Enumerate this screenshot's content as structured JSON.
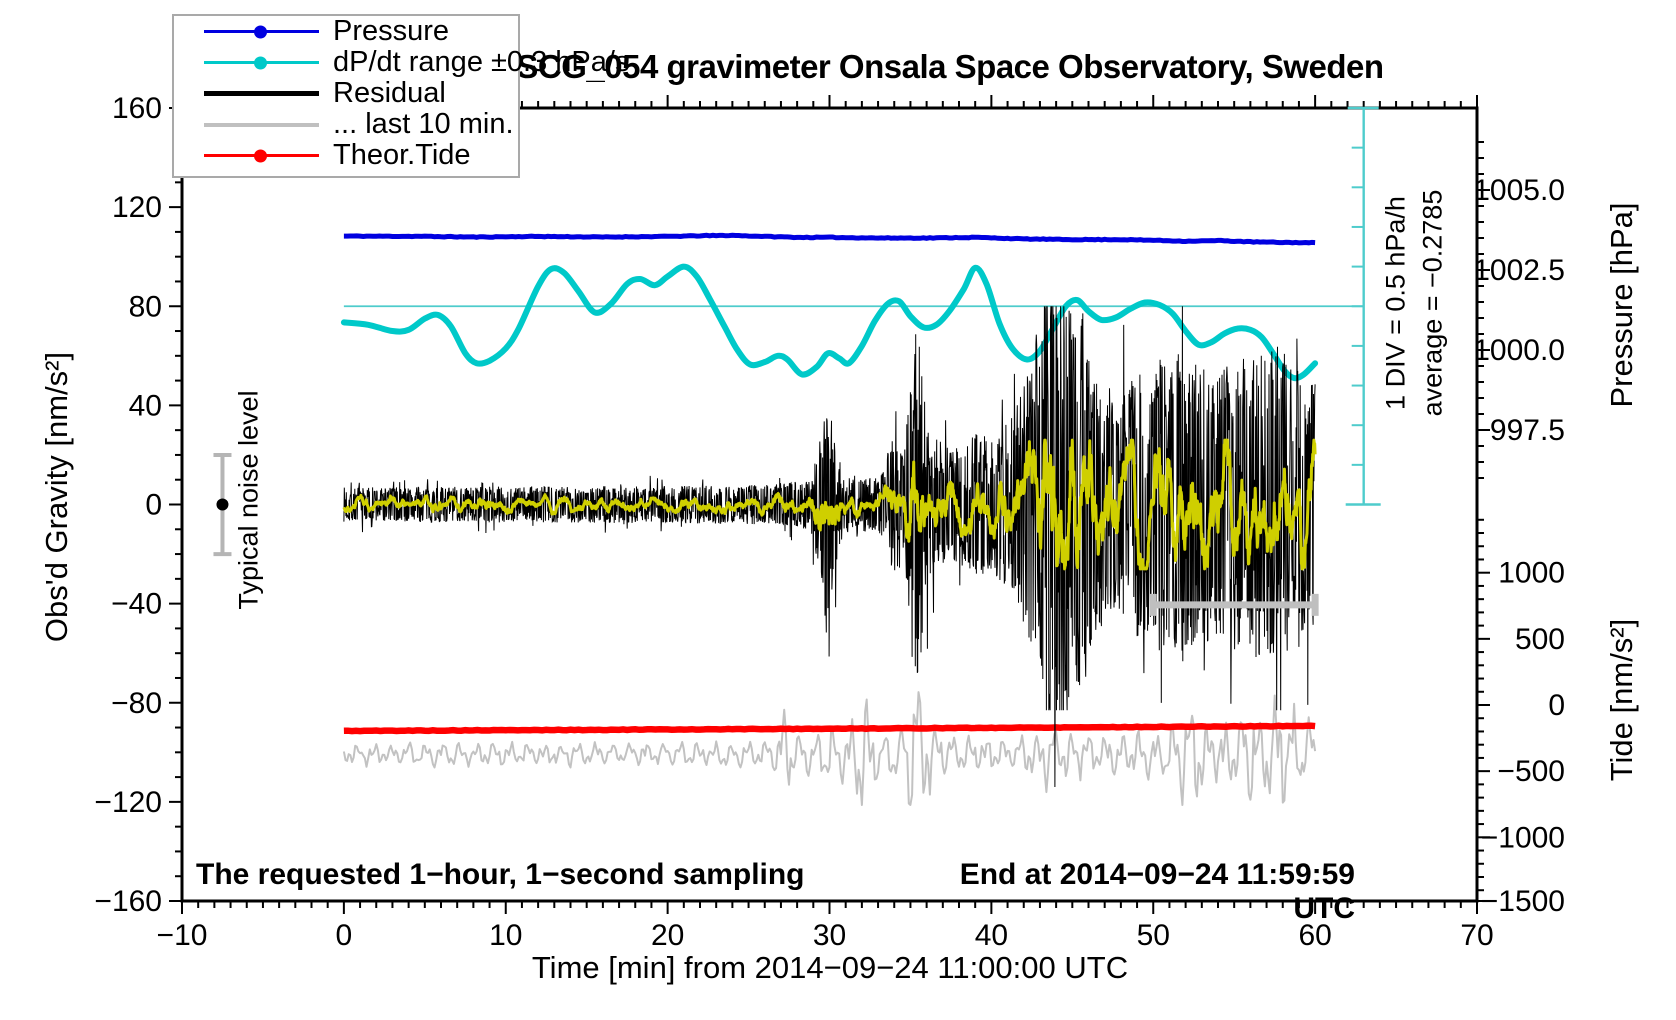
{
  "figure": {
    "title": "SCG_054 gravimeter Onsala Space Observatory, Sweden",
    "background": "#ffffff"
  },
  "legend": {
    "items": [
      {
        "label": "Pressure",
        "color": "#0000e0",
        "dot": true,
        "weight": 3
      },
      {
        "label": "dP/dt range ±0.3 hPa/s",
        "color": "#00c9c9",
        "dot": true,
        "weight": 3
      },
      {
        "label": "Residual",
        "color": "#000000",
        "dot": false,
        "weight": 5
      },
      {
        "label": "... last 10 min.",
        "color": "#c0c0c0",
        "dot": false,
        "weight": 4
      },
      {
        "label": "Theor.Tide",
        "color": "#ff0000",
        "dot": true,
        "weight": 3
      }
    ]
  },
  "axes": {
    "x": {
      "title": "Time [min] from 2014−09−24 11:00:00 UTC",
      "min": -10,
      "max": 70,
      "minor_step": 1,
      "ticks": [
        {
          "v": -10,
          "label": "−10"
        },
        {
          "v": 0,
          "label": "0"
        },
        {
          "v": 10,
          "label": "10"
        },
        {
          "v": 20,
          "label": "20"
        },
        {
          "v": 30,
          "label": "30"
        },
        {
          "v": 40,
          "label": "40"
        },
        {
          "v": 50,
          "label": "50"
        },
        {
          "v": 60,
          "label": "60"
        },
        {
          "v": 70,
          "label": "70"
        }
      ]
    },
    "gravity": {
      "title": "Obs'd Gravity [nm/s²]",
      "min": -160,
      "max": 160,
      "minor_step": 10,
      "ticks": [
        {
          "v": 160,
          "label": "160"
        },
        {
          "v": 120,
          "label": "120"
        },
        {
          "v": 80,
          "label": "80"
        },
        {
          "v": 40,
          "label": "40"
        },
        {
          "v": 0,
          "label": "0"
        },
        {
          "v": -40,
          "label": "−40"
        },
        {
          "v": -80,
          "label": "−80"
        },
        {
          "v": -120,
          "label": "−120"
        },
        {
          "v": -160,
          "label": "−160"
        }
      ]
    },
    "pressure": {
      "title": "Pressure [hPa]",
      "minor_step": 0.5,
      "ticks": [
        {
          "v": 1005.0,
          "label": "1005.0"
        },
        {
          "v": 1002.5,
          "label": "1002.5"
        },
        {
          "v": 1000.0,
          "label": "1000.0"
        },
        {
          "v": 997.5,
          "label": "997.5"
        }
      ]
    },
    "tide": {
      "title": "Tide [nm/s²]",
      "minor_step": 100,
      "ticks": [
        {
          "v": 1000,
          "label": "1000"
        },
        {
          "v": 500,
          "label": "500"
        },
        {
          "v": 0,
          "label": "0"
        },
        {
          "v": -500,
          "label": "−500"
        },
        {
          "v": -1000,
          "label": "−1000"
        },
        {
          "v": -1500,
          "label": "−1500"
        }
      ]
    }
  },
  "annotations": {
    "sampling_note": "The requested 1−hour, 1−second sampling",
    "end_note": "End at 2014−09−24 11:59:59 UTC",
    "typical_noise": {
      "label": "Typical noise level",
      "t": -7.5,
      "center_g": 0,
      "half_range_g": 20
    },
    "div_scale": {
      "label": "1 DIV = 0.5 hPa/h"
    },
    "average": {
      "label": "average = −0.2785"
    },
    "ruler": {
      "t": 63,
      "g_min": 0,
      "g_max": 160,
      "divisions": 10,
      "color": "#4ecccc"
    },
    "last_10_min_marker": {
      "t0": 50,
      "t1": 60,
      "g": -40.5,
      "color": "#bfbfbf"
    },
    "dpdt_zero_line": {
      "g": 80,
      "t0": 0,
      "t_end_x_of_ruler": true,
      "color": "#4ecccc"
    }
  },
  "chart_data": {
    "type": "line",
    "title": "SCG_054 gravimeter Onsala Space Observatory, Sweden",
    "x_range_min": [
      -10,
      70
    ],
    "gravity_range": [
      -160,
      160
    ],
    "pressure_labeled_range": [
      997.5,
      1005.0
    ],
    "tide_labeled_range": [
      -1500,
      1000
    ],
    "grid": false,
    "series": [
      {
        "id": "pressure",
        "name": "Pressure",
        "axis": "pressure",
        "unit": "hPa",
        "color": "#0000e0",
        "width": 5,
        "jitter": 0.012,
        "seed": 11,
        "points": [
          [
            0,
            1003.56
          ],
          [
            5,
            1003.55
          ],
          [
            8,
            1003.53
          ],
          [
            12,
            1003.55
          ],
          [
            16,
            1003.53
          ],
          [
            20,
            1003.55
          ],
          [
            22,
            1003.57
          ],
          [
            24,
            1003.58
          ],
          [
            26,
            1003.55
          ],
          [
            28,
            1003.52
          ],
          [
            30,
            1003.52
          ],
          [
            33,
            1003.5
          ],
          [
            36,
            1003.5
          ],
          [
            39,
            1003.52
          ],
          [
            42,
            1003.47
          ],
          [
            45,
            1003.45
          ],
          [
            48,
            1003.45
          ],
          [
            50,
            1003.43
          ],
          [
            52,
            1003.4
          ],
          [
            54,
            1003.42
          ],
          [
            56,
            1003.38
          ],
          [
            58,
            1003.36
          ],
          [
            60,
            1003.35
          ]
        ]
      },
      {
        "id": "dpdt",
        "name": "dP/dt range ±0.3 hPa/s",
        "axis": "gravity_display",
        "color": "#00c9c9",
        "width": 6,
        "scale_note": "zero at gravity 80, 1 DIV = 0.5 hPa/h = 16 gravity units",
        "zero_g": 80,
        "g_units_per_hPa_per_h": 32,
        "points": [
          [
            0,
            73.5
          ],
          [
            1.5,
            72.5
          ],
          [
            3,
            70
          ],
          [
            4,
            70.5
          ],
          [
            5,
            75
          ],
          [
            5.8,
            76.5
          ],
          [
            6.6,
            72
          ],
          [
            7.5,
            61
          ],
          [
            8.2,
            57
          ],
          [
            9,
            58
          ],
          [
            10,
            63
          ],
          [
            10.8,
            71
          ],
          [
            12,
            88
          ],
          [
            12.8,
            95
          ],
          [
            13.6,
            93.5
          ],
          [
            14.5,
            86
          ],
          [
            15.5,
            77.5
          ],
          [
            16.5,
            81
          ],
          [
            17.5,
            89
          ],
          [
            18.3,
            91
          ],
          [
            19.2,
            88.5
          ],
          [
            20,
            92
          ],
          [
            21,
            96
          ],
          [
            21.8,
            92
          ],
          [
            22.6,
            83
          ],
          [
            23.5,
            72
          ],
          [
            24.3,
            62.5
          ],
          [
            25.1,
            56.5
          ],
          [
            26,
            57.5
          ],
          [
            26.8,
            60
          ],
          [
            27.4,
            58.5
          ],
          [
            28.3,
            52.5
          ],
          [
            29.2,
            55.5
          ],
          [
            29.9,
            61
          ],
          [
            30.6,
            59
          ],
          [
            31.2,
            57
          ],
          [
            32,
            64
          ],
          [
            32.8,
            74
          ],
          [
            33.6,
            81
          ],
          [
            34.3,
            82
          ],
          [
            35,
            76
          ],
          [
            35.8,
            71.5
          ],
          [
            36.6,
            72.5
          ],
          [
            37.4,
            78
          ],
          [
            38.3,
            87
          ],
          [
            39,
            95.5
          ],
          [
            39.7,
            89
          ],
          [
            40.5,
            73
          ],
          [
            41.3,
            63
          ],
          [
            42.2,
            58.5
          ],
          [
            43,
            62
          ],
          [
            43.8,
            71
          ],
          [
            44.6,
            80
          ],
          [
            45.3,
            82.5
          ],
          [
            46,
            78
          ],
          [
            46.8,
            74.5
          ],
          [
            47.7,
            75.5
          ],
          [
            48.6,
            79
          ],
          [
            49.5,
            81.5
          ],
          [
            50.4,
            80.5
          ],
          [
            51.2,
            77
          ],
          [
            52,
            70
          ],
          [
            52.8,
            64.5
          ],
          [
            53.6,
            65.5
          ],
          [
            54.4,
            69
          ],
          [
            55.2,
            71
          ],
          [
            56,
            70.5
          ],
          [
            56.7,
            67.5
          ],
          [
            57.4,
            61
          ],
          [
            58.1,
            54
          ],
          [
            58.7,
            51
          ],
          [
            59.3,
            52.5
          ],
          [
            60,
            57
          ]
        ],
        "average_hPa_per_h": -0.2785
      },
      {
        "id": "residual",
        "name": "Residual",
        "axis": "gravity",
        "unit": "nm/s2",
        "color": "#000000",
        "width": 1,
        "generator": {
          "seed": 7,
          "dt_min": 0.025,
          "clamp": [
            -83,
            80
          ],
          "spike_prob": 0.05,
          "spike_gain": 1.6,
          "deep_spike": {
            "t": 43.92,
            "g": -114
          },
          "tall_spike": {
            "t": 43.3,
            "g": 79
          },
          "envelope": [
            [
              0,
              7
            ],
            [
              20,
              7.5
            ],
            [
              26,
              8
            ],
            [
              27.5,
              9
            ],
            [
              28.8,
              10
            ],
            [
              29.4,
              26
            ],
            [
              29.9,
              45
            ],
            [
              30.3,
              30
            ],
            [
              30.8,
              13
            ],
            [
              32,
              11
            ],
            [
              33.2,
              12
            ],
            [
              33.8,
              26
            ],
            [
              34.6,
              28
            ],
            [
              35.1,
              55
            ],
            [
              35.45,
              80
            ],
            [
              35.8,
              45
            ],
            [
              36.3,
              28
            ],
            [
              37.5,
              22
            ],
            [
              38.5,
              26
            ],
            [
              39.3,
              30
            ],
            [
              40,
              26
            ],
            [
              40.7,
              32
            ],
            [
              41.3,
              36
            ],
            [
              42,
              48
            ],
            [
              42.6,
              60
            ],
            [
              43,
              80
            ],
            [
              43.4,
              95
            ],
            [
              43.8,
              92
            ],
            [
              44.2,
              95
            ],
            [
              44.7,
              85
            ],
            [
              45.1,
              70
            ],
            [
              45.6,
              85
            ],
            [
              46,
              60
            ],
            [
              46.5,
              50
            ],
            [
              47.2,
              42
            ],
            [
              48,
              44
            ],
            [
              48.6,
              50
            ],
            [
              49.2,
              58
            ],
            [
              49.8,
              52
            ],
            [
              50.3,
              62
            ],
            [
              50.9,
              55
            ],
            [
              51.4,
              60
            ],
            [
              52,
              63
            ],
            [
              52.6,
              55
            ],
            [
              53.2,
              58
            ],
            [
              54,
              52
            ],
            [
              54.6,
              57
            ],
            [
              55.2,
              60
            ],
            [
              55.8,
              55
            ],
            [
              56.4,
              62
            ],
            [
              57,
              58
            ],
            [
              57.6,
              65
            ],
            [
              58.2,
              60
            ],
            [
              58.8,
              55
            ],
            [
              59.4,
              52
            ],
            [
              60,
              50
            ]
          ]
        }
      },
      {
        "id": "residual_smooth",
        "name": "Residual smoothed overlay",
        "axis": "gravity",
        "color": "#cfcf00",
        "width": 3,
        "derived_from": "residual",
        "window": 17,
        "gain": 1.3,
        "clamp": 26
      },
      {
        "id": "theor_tide",
        "name": "Theor.Tide",
        "axis": "tide",
        "unit": "nm/s2",
        "color": "#ff0000",
        "width": 6.5,
        "jitter": 2.5,
        "seed": 5,
        "points": [
          [
            0,
            -196
          ],
          [
            15,
            -188
          ],
          [
            30,
            -179
          ],
          [
            45,
            -169
          ],
          [
            60,
            -158
          ]
        ]
      },
      {
        "id": "tide_residual_gray",
        "name": "... last 10 min.",
        "axis": "tide",
        "color": "#c2c2c2",
        "width": 2,
        "generator": {
          "seed": 21,
          "dt_min": 0.1,
          "center": -372,
          "clamp": [
            -756,
            440
          ],
          "periods_min": [
            1.05,
            0.42
          ],
          "weights": [
            0.6,
            0.42
          ],
          "noise_weight": 0.3,
          "envelope": [
            [
              0,
              80
            ],
            [
              20,
              85
            ],
            [
              25,
              85
            ],
            [
              26.5,
              120
            ],
            [
              27.3,
              300
            ],
            [
              28,
              160
            ],
            [
              29,
              120
            ],
            [
              29.8,
              220
            ],
            [
              30.6,
              150
            ],
            [
              31.3,
              250
            ],
            [
              31.9,
              600
            ],
            [
              32.6,
              250
            ],
            [
              33.5,
              160
            ],
            [
              34.5,
              260
            ],
            [
              35.4,
              700
            ],
            [
              36.2,
              350
            ],
            [
              37,
              200
            ],
            [
              38,
              150
            ],
            [
              39.5,
              120
            ],
            [
              41,
              110
            ],
            [
              42.5,
              160
            ],
            [
              43.5,
              240
            ],
            [
              44.5,
              200
            ],
            [
              45.5,
              160
            ],
            [
              46.5,
              150
            ],
            [
              48,
              170
            ],
            [
              49,
              200
            ],
            [
              50,
              190
            ],
            [
              51,
              240
            ],
            [
              51.8,
              350
            ],
            [
              52.5,
              430
            ],
            [
              53.2,
              280
            ],
            [
              54,
              200
            ],
            [
              55,
              300
            ],
            [
              55.8,
              380
            ],
            [
              56.5,
              340
            ],
            [
              57.2,
              420
            ],
            [
              57.8,
              500
            ],
            [
              58.4,
              400
            ],
            [
              59,
              330
            ],
            [
              59.6,
              280
            ],
            [
              60,
              250
            ]
          ]
        }
      }
    ]
  }
}
